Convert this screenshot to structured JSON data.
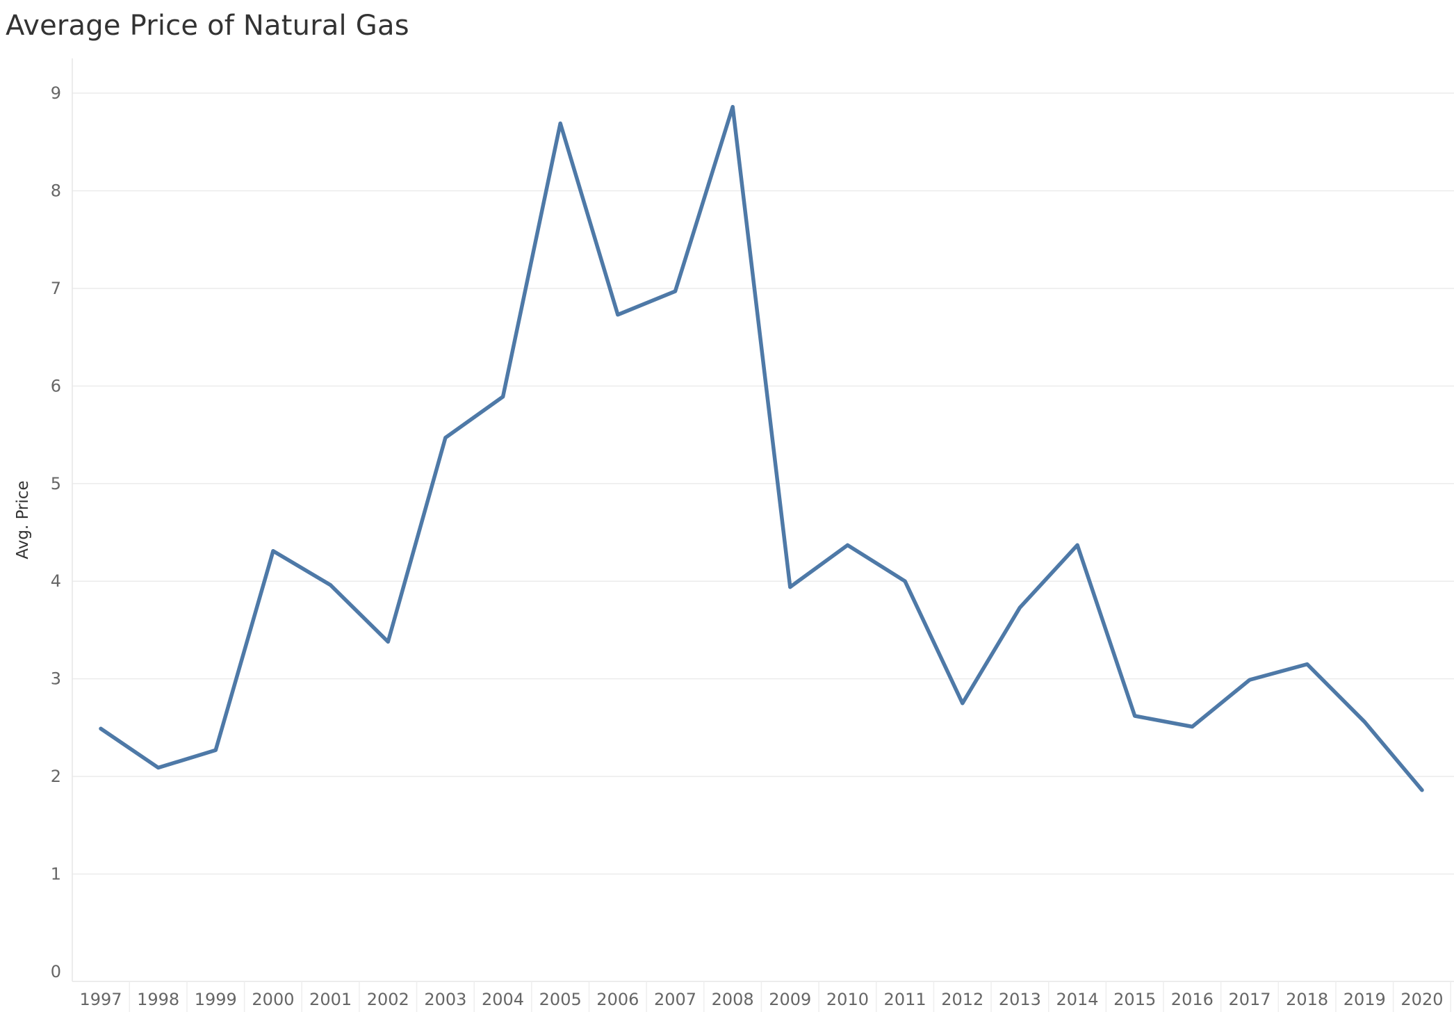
{
  "chart_data": {
    "type": "line",
    "title": "Average Price of Natural Gas",
    "xlabel": "",
    "ylabel": "Avg. Price",
    "ylim": [
      0,
      9
    ],
    "yticks": [
      0,
      1,
      2,
      3,
      4,
      5,
      6,
      7,
      8,
      9
    ],
    "grid": "horizontal",
    "legend": "none",
    "line_color": "#4e79a7",
    "categories": [
      "1997",
      "1998",
      "1999",
      "2000",
      "2001",
      "2002",
      "2003",
      "2004",
      "2005",
      "2006",
      "2007",
      "2008",
      "2009",
      "2010",
      "2011",
      "2012",
      "2013",
      "2014",
      "2015",
      "2016",
      "2017",
      "2018",
      "2019",
      "2020"
    ],
    "series": [
      {
        "values": [
          2.49,
          2.09,
          2.27,
          4.31,
          3.96,
          3.38,
          5.47,
          5.89,
          8.69,
          6.73,
          6.97,
          8.86,
          3.94,
          4.37,
          4.0,
          2.75,
          3.73,
          4.37,
          2.62,
          2.51,
          2.99,
          3.15,
          2.56,
          1.86
        ]
      }
    ]
  }
}
